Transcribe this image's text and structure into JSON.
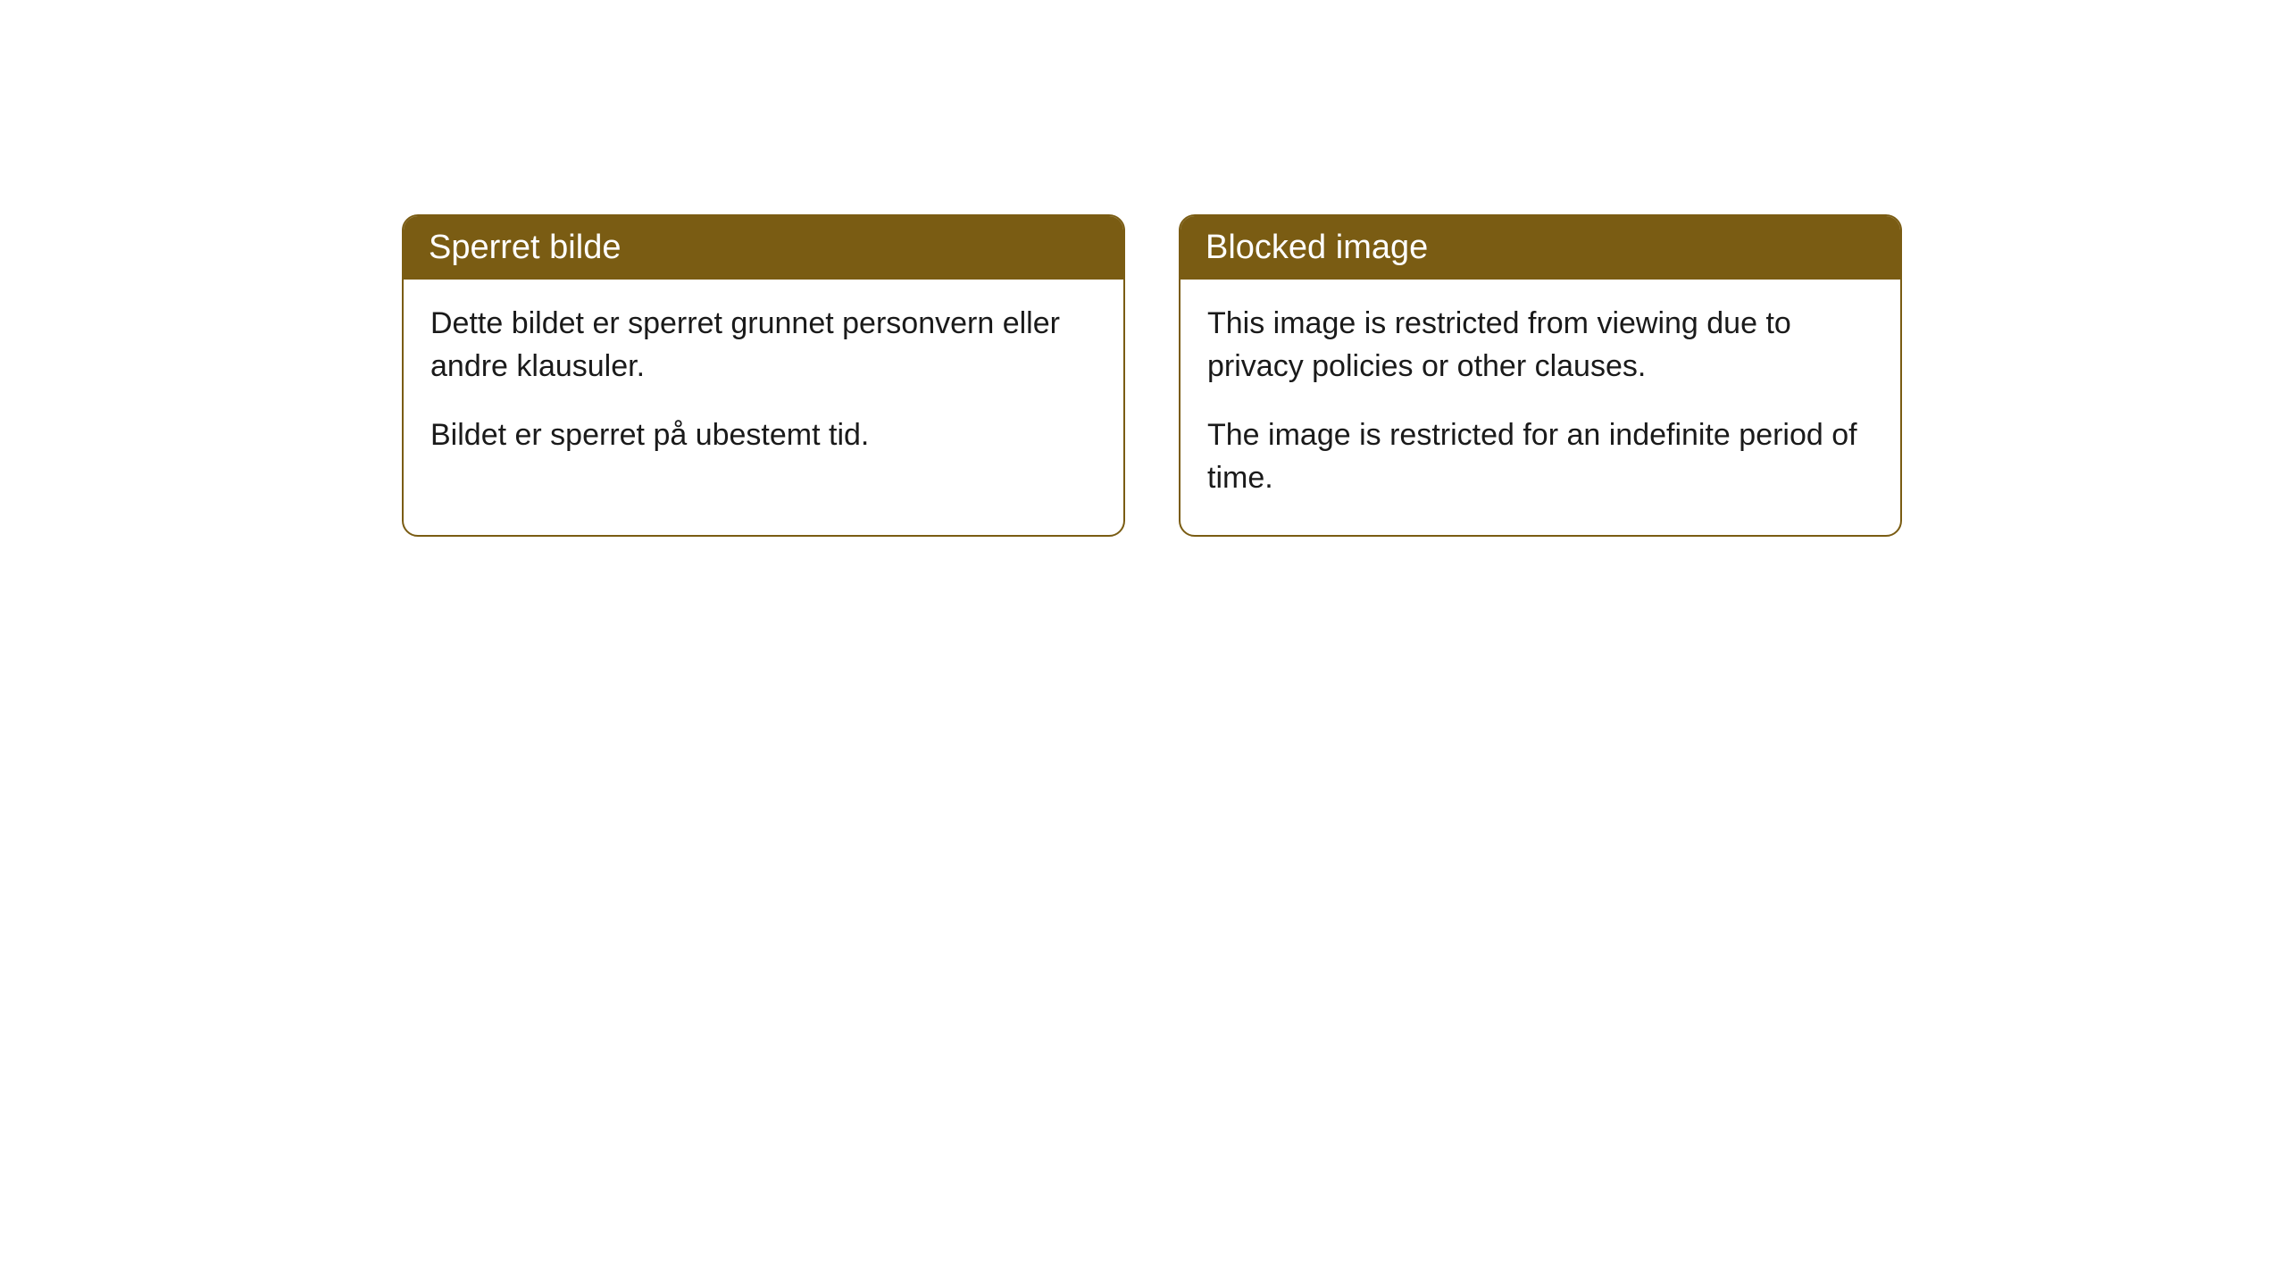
{
  "cards": [
    {
      "title": "Sperret bilde",
      "paragraph1": "Dette bildet er sperret grunnet personvern eller andre klausuler.",
      "paragraph2": "Bildet er sperret på ubestemt tid."
    },
    {
      "title": "Blocked image",
      "paragraph1": "This image is restricted from viewing due to privacy policies or other clauses.",
      "paragraph2": "The image is restricted for an indefinite period of time."
    }
  ],
  "style": {
    "header_bg": "#7a5c13",
    "header_text_color": "#ffffff",
    "border_color": "#7a5c13",
    "body_bg": "#ffffff",
    "body_text_color": "#1a1a1a",
    "border_radius": 18,
    "header_fontsize": 38,
    "body_fontsize": 34
  }
}
